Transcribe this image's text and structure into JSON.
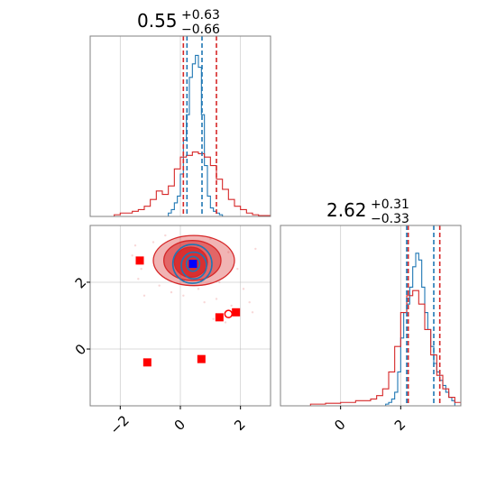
{
  "colors": {
    "blue": "#1f77b4",
    "red": "#d62728",
    "marker_red": "#ff0000",
    "marker_blue": "#0000ff",
    "grid": "#b0b0b0",
    "frame": "#808080"
  },
  "chart_data": [
    {
      "type": "histogram",
      "panel": "top-left",
      "title": {
        "median": "0.55",
        "upper": "+0.63",
        "lower": "−0.66"
      },
      "xlim": [
        -3,
        3
      ],
      "grid": true,
      "quantile_lines": {
        "blue": [
          0.22,
          0.72
        ],
        "red": [
          0.1,
          1.2
        ]
      },
      "series": [
        {
          "name": "",
          "color": "blue",
          "bin_edges": [
            -0.5,
            -0.4,
            -0.3,
            -0.2,
            -0.1,
            0,
            0.1,
            0.2,
            0.3,
            0.4,
            0.5,
            0.6,
            0.7,
            0.8,
            0.9,
            1.0,
            1.1,
            1.2,
            1.3,
            1.4,
            1.5
          ],
          "counts": [
            0,
            0.02,
            0.04,
            0.08,
            0.12,
            0.25,
            0.45,
            0.6,
            0.82,
            0.9,
            0.95,
            0.88,
            0.6,
            0.3,
            0.12,
            0.05,
            0.03,
            0.02,
            0.01,
            0
          ]
        },
        {
          "name": "",
          "color": "red",
          "bin_edges": [
            -2.2,
            -2.0,
            -1.8,
            -1.6,
            -1.4,
            -1.2,
            -1.0,
            -0.8,
            -0.6,
            -0.4,
            -0.2,
            0,
            0.2,
            0.4,
            0.6,
            0.8,
            1.0,
            1.2,
            1.4,
            1.6,
            1.8,
            2.0,
            2.2,
            2.4,
            2.6,
            2.8,
            3.0
          ],
          "counts": [
            0.01,
            0.02,
            0.02,
            0.03,
            0.04,
            0.06,
            0.1,
            0.15,
            0.13,
            0.18,
            0.28,
            0.35,
            0.36,
            0.38,
            0.37,
            0.35,
            0.3,
            0.22,
            0.16,
            0.1,
            0.06,
            0.04,
            0.02,
            0.01,
            0.005,
            0.005
          ]
        }
      ]
    },
    {
      "type": "histogram",
      "panel": "bottom-right",
      "title": {
        "median": "2.62",
        "upper": "+0.31",
        "lower": "−0.33"
      },
      "xlim": [
        -2,
        4
      ],
      "ticks": [
        0,
        2
      ],
      "tick_labels": [
        "0",
        "2"
      ],
      "grid": true,
      "quantile_lines": {
        "blue": [
          2.2,
          3.1
        ],
        "red": [
          2.25,
          3.3
        ]
      },
      "series": [
        {
          "name": "",
          "color": "blue",
          "bin_edges": [
            1.5,
            1.6,
            1.7,
            1.8,
            1.9,
            2.0,
            2.1,
            2.2,
            2.3,
            2.4,
            2.5,
            2.6,
            2.7,
            2.8,
            2.9,
            3.0,
            3.1,
            3.2,
            3.3,
            3.4,
            3.5,
            3.6,
            3.7,
            3.8
          ],
          "counts": [
            0.01,
            0.02,
            0.04,
            0.08,
            0.2,
            0.4,
            0.55,
            0.6,
            0.7,
            0.82,
            0.9,
            0.86,
            0.7,
            0.55,
            0.45,
            0.35,
            0.25,
            0.2,
            0.15,
            0.12,
            0.08,
            0.05,
            0.03
          ]
        },
        {
          "name": "",
          "color": "red",
          "bin_edges": [
            -1.0,
            -0.5,
            0,
            0.5,
            1.0,
            1.2,
            1.4,
            1.6,
            1.8,
            2.0,
            2.2,
            2.4,
            2.6,
            2.8,
            3.0,
            3.2,
            3.4,
            3.6,
            3.8,
            4.0
          ],
          "counts": [
            0.01,
            0.015,
            0.02,
            0.03,
            0.04,
            0.06,
            0.1,
            0.2,
            0.35,
            0.55,
            0.65,
            0.68,
            0.6,
            0.45,
            0.3,
            0.18,
            0.1,
            0.05,
            0.02
          ]
        }
      ]
    },
    {
      "type": "scatter",
      "panel": "bottom-left",
      "xlim": [
        -3,
        3
      ],
      "ylim": [
        -1.7,
        3.7
      ],
      "xticks": [
        -2,
        0,
        2
      ],
      "xtick_labels": [
        "−2",
        "0",
        "2"
      ],
      "yticks": [
        0,
        2
      ],
      "ytick_labels": [
        "0",
        "2"
      ],
      "grid": true,
      "red_contours": [
        {
          "cx": 0.45,
          "cy": 2.65,
          "rx": 1.35,
          "ry": 0.75,
          "fill_opacity": 0.35
        },
        {
          "cx": 0.4,
          "cy": 2.65,
          "rx": 0.95,
          "ry": 0.6,
          "fill_opacity": 0.55
        },
        {
          "cx": 0.35,
          "cy": 2.6,
          "rx": 0.55,
          "ry": 0.45,
          "fill_opacity": 0.85
        }
      ],
      "blue_contours": [
        {
          "cx": 0.4,
          "cy": 2.55,
          "rx": 0.65,
          "ry": 0.58
        },
        {
          "cx": 0.45,
          "cy": 2.5,
          "rx": 0.42,
          "ry": 0.4
        },
        {
          "cx": 0.42,
          "cy": 2.55,
          "rx": 0.22,
          "ry": 0.22
        }
      ],
      "red_squares": [
        {
          "x": -1.35,
          "y": 2.65
        },
        {
          "x": 1.3,
          "y": 0.95
        },
        {
          "x": 1.85,
          "y": 1.1
        },
        {
          "x": -1.1,
          "y": -0.4
        },
        {
          "x": 0.7,
          "y": -0.3
        }
      ],
      "red_circle": {
        "x": 1.6,
        "y": 1.05
      },
      "blue_square": {
        "x": 0.42,
        "y": 2.55
      },
      "scatter_points": [
        [
          -1.5,
          3.1
        ],
        [
          -1.4,
          2.1
        ],
        [
          -1.2,
          1.6
        ],
        [
          -0.9,
          3.2
        ],
        [
          -0.7,
          1.9
        ],
        [
          -0.5,
          3.4
        ],
        [
          -0.3,
          1.7
        ],
        [
          0.1,
          1.6
        ],
        [
          0.6,
          1.8
        ],
        [
          1.0,
          3.3
        ],
        [
          1.3,
          2.0
        ],
        [
          1.6,
          2.9
        ],
        [
          1.9,
          2.4
        ],
        [
          2.1,
          1.8
        ],
        [
          2.3,
          1.4
        ],
        [
          1.7,
          1.3
        ],
        [
          1.2,
          1.5
        ],
        [
          2.4,
          1.1
        ],
        [
          1.5,
          0.8
        ],
        [
          -1.3,
          2.4
        ],
        [
          2.5,
          3.0
        ],
        [
          0.8,
          1.4
        ],
        [
          -1.6,
          2.8
        ],
        [
          1.1,
          0.9
        ]
      ]
    }
  ]
}
